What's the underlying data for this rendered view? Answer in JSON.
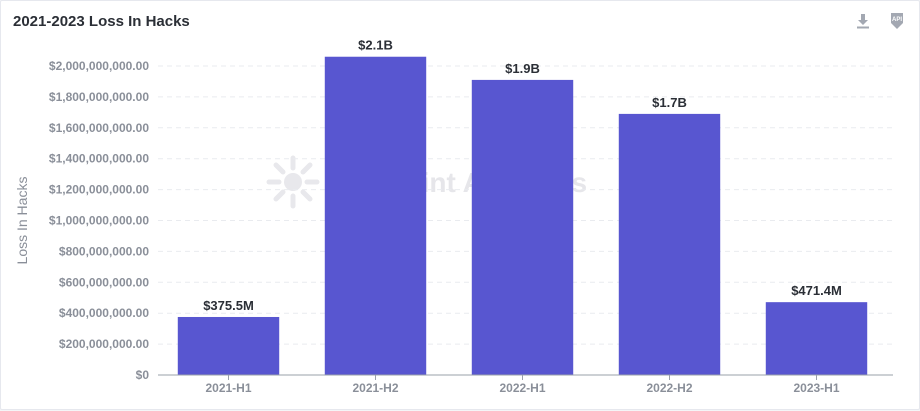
{
  "toolbar": {
    "download_icon": "download-icon",
    "api_icon": "api-icon",
    "api_text": "API"
  },
  "watermark": {
    "text": "Footprint Analytics"
  },
  "chart_data": {
    "type": "bar",
    "title": "2021-2023 Loss In Hacks",
    "xlabel": "",
    "ylabel": "Loss In Hacks",
    "categories": [
      "2021-H1",
      "2021-H2",
      "2022-H1",
      "2022-H2",
      "2023-H1"
    ],
    "values": [
      375500000,
      2060000000,
      1910000000,
      1690000000,
      471400000
    ],
    "data_labels": [
      "$375.5M",
      "$2.1B",
      "$1.9B",
      "$1.7B",
      "$471.4M"
    ],
    "ylim": [
      0,
      2000000000
    ],
    "yticks": [
      0,
      200000000,
      400000000,
      600000000,
      800000000,
      1000000000,
      1200000000,
      1400000000,
      1600000000,
      1800000000,
      2000000000
    ],
    "ytick_labels": [
      "$0",
      "$200,000,000.00",
      "$400,000,000.00",
      "$600,000,000.00",
      "$800,000,000.00",
      "$1,000,000,000.00",
      "$1,200,000,000.00",
      "$1,400,000,000.00",
      "$1,600,000,000.00",
      "$1,800,000,000.00",
      "$2,000,000,000.00"
    ],
    "grid": true,
    "legend": "none",
    "bar_color": "#5856d0"
  }
}
